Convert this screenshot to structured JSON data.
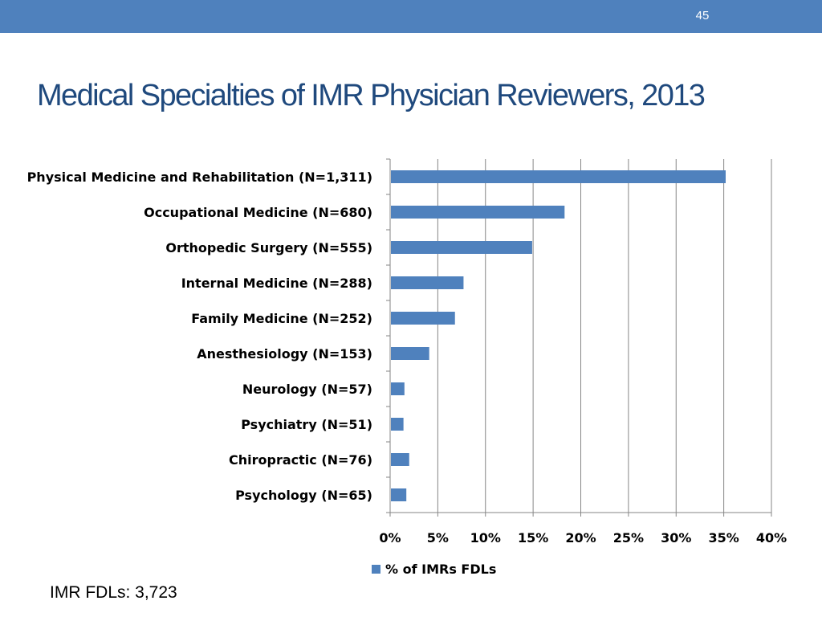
{
  "slide": {
    "page_number": "45",
    "title": "Medical Specialties of IMR Physician Reviewers, 2013",
    "footnote": "IMR FDLs: 3,723"
  },
  "colors": {
    "topbar": "#4f81bd",
    "title": "#1f497d",
    "bar": "#4f81bd"
  },
  "chart_data": {
    "type": "bar",
    "orientation": "horizontal",
    "categories": [
      "Physical Medicine and Rehabilitation (N=1,311)",
      "Occupational Medicine (N=680)",
      "Orthopedic Surgery (N=555)",
      "Internal Medicine (N=288)",
      "Family Medicine (N=252)",
      "Anesthesiology (N=153)",
      "Neurology (N=57)",
      "Psychiatry (N=51)",
      "Chiropractic (N=76)",
      "Psychology (N=65)"
    ],
    "series": [
      {
        "name": "% of IMRs FDLs",
        "values": [
          35.2,
          18.3,
          14.9,
          7.7,
          6.8,
          4.1,
          1.5,
          1.4,
          2.0,
          1.7
        ]
      }
    ],
    "xlim": [
      0,
      40
    ],
    "x_ticks": [
      0,
      5,
      10,
      15,
      20,
      25,
      30,
      35,
      40
    ],
    "x_tick_labels": [
      "0%",
      "5%",
      "10%",
      "15%",
      "20%",
      "25%",
      "30%",
      "35%",
      "40%"
    ],
    "grid": "vertical",
    "legend": "bottom"
  }
}
